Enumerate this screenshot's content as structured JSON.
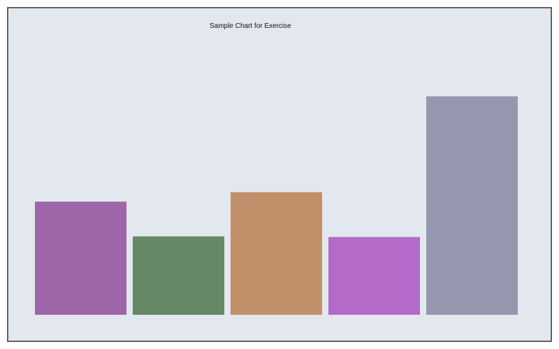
{
  "chart_data": {
    "type": "bar",
    "title": "Sample Chart for Exercise",
    "xlabel": "",
    "ylabel": "",
    "ylim": [
      0,
      100
    ],
    "grid": false,
    "categories": [
      "",
      "",
      "",
      "",
      ""
    ],
    "values": [
      51.8,
      35.9,
      56.1,
      35.6,
      100
    ],
    "colors": [
      "#9e66a8",
      "#678866",
      "#c1906b",
      "#b46ac8",
      "#9697af"
    ],
    "background": "#e3e7ee",
    "frame_color": "#5f6368"
  }
}
